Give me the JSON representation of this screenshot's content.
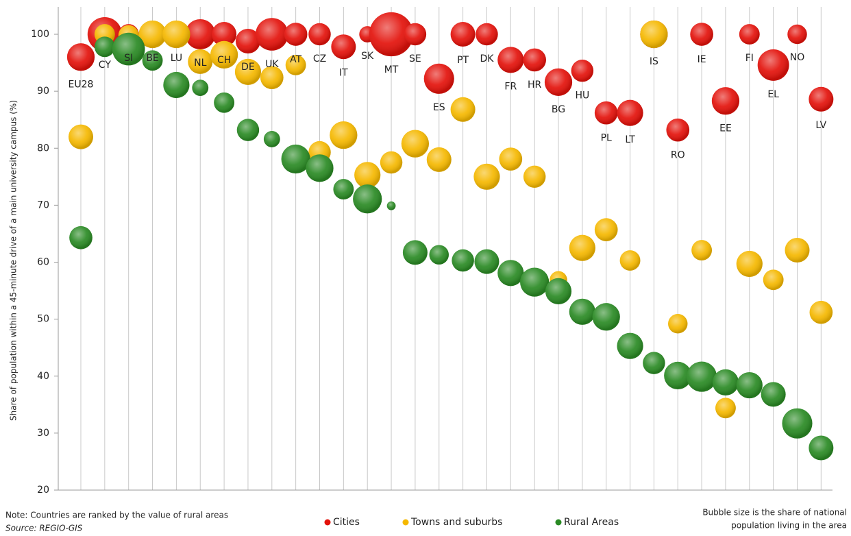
{
  "chart_data": {
    "type": "bubble",
    "y_label": "Share of population within a 45-minute drive of a main university campus  (%)",
    "note": "Note: Countries are ranked by the value of rural areas",
    "source": "Source: REGIO-GIS",
    "size_note": [
      "Bubble size is the share of national",
      "population living in the area"
    ],
    "categories": [
      "EU28",
      "CY",
      "SI",
      "BE",
      "LU",
      "NL",
      "CH",
      "DE",
      "UK",
      "AT",
      "CZ",
      "IT",
      "SK",
      "MT",
      "SE",
      "ES",
      "PT",
      "DK",
      "FR",
      "HR",
      "BG",
      "HU",
      "PL",
      "LT",
      "IS",
      "RO",
      "IE",
      "EE",
      "FI",
      "EL",
      "NO",
      "LV"
    ],
    "ylim": [
      20,
      100
    ],
    "yticks": [
      20,
      30,
      40,
      50,
      60,
      70,
      80,
      90,
      100
    ],
    "grid": true,
    "legend": "bottom",
    "series": [
      {
        "name": "Cities",
        "color": "#e3120b",
        "values": [
          96.0,
          100,
          100,
          100,
          100,
          100,
          100,
          98.8,
          100,
          100,
          100,
          97.8,
          100,
          100,
          100,
          92.2,
          100,
          100,
          95.5,
          95.5,
          91.6,
          93.6,
          86.2,
          86.2,
          100,
          83.2,
          100,
          88.3,
          100,
          94.6,
          100,
          88.6
        ],
        "sizes": [
          20,
          31,
          11,
          11,
          11,
          24,
          16,
          16,
          28,
          14,
          13,
          16,
          7,
          51,
          13,
          24,
          16,
          13,
          18,
          14,
          20,
          13,
          14,
          18,
          20,
          14,
          14,
          20,
          11,
          26,
          10,
          16
        ]
      },
      {
        "name": "Towns and suburbs",
        "color": "#f5b800",
        "values": [
          82.0,
          100,
          99.8,
          100,
          100,
          95.2,
          96.4,
          93.4,
          92.4,
          94.6,
          79.3,
          82.3,
          75.3,
          77.5,
          80.8,
          78.0,
          86.8,
          75.0,
          78.1,
          75.0,
          56.9,
          62.5,
          65.7,
          60.3,
          100,
          49.2,
          62.1,
          34.4,
          59.7,
          56.9,
          62.1,
          51.2
        ],
        "sizes": [
          16,
          11,
          11,
          20,
          20,
          16,
          20,
          18,
          14,
          11,
          13,
          20,
          18,
          13,
          20,
          16,
          16,
          18,
          14,
          13,
          8,
          18,
          14,
          11,
          20,
          10,
          11,
          11,
          18,
          11,
          16,
          14
        ]
      },
      {
        "name": "Rural Areas",
        "color": "#2a8a24",
        "values": [
          64.3,
          97.8,
          97.4,
          95.4,
          91.1,
          90.6,
          88.0,
          83.2,
          81.6,
          78.1,
          76.5,
          72.8,
          71.1,
          69.9,
          61.7,
          61.3,
          60.3,
          60.1,
          58.1,
          56.5,
          54.9,
          51.3,
          50.4,
          45.3,
          42.3,
          40.1,
          39.9,
          38.9,
          38.4,
          36.8,
          31.7,
          27.4
        ],
        "sizes": [
          14,
          11,
          28,
          11,
          18,
          7,
          11,
          13,
          7,
          22,
          20,
          11,
          22,
          2,
          16,
          10,
          13,
          16,
          18,
          22,
          18,
          18,
          20,
          18,
          13,
          20,
          24,
          18,
          18,
          16,
          24,
          16
        ]
      }
    ]
  }
}
